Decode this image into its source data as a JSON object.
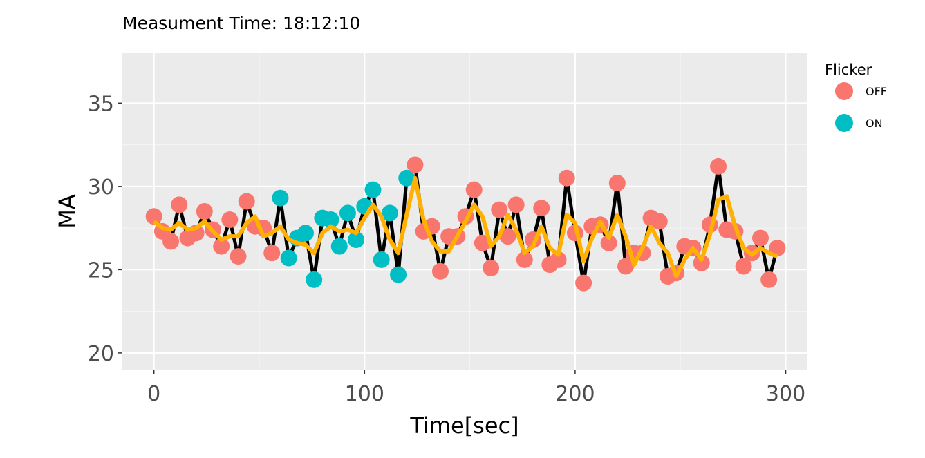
{
  "chart_data": {
    "type": "line",
    "title": "Measument Time: 18:12:10",
    "xlabel": "Time[sec]",
    "ylabel": "MA",
    "xlim": [
      -15,
      310
    ],
    "ylim": [
      19,
      38
    ],
    "x_ticks": [
      0,
      100,
      200,
      300
    ],
    "y_ticks": [
      20,
      25,
      30,
      35
    ],
    "x_tick_labels": [
      "0",
      "100",
      "200",
      "300"
    ],
    "y_tick_labels": [
      "20",
      "25",
      "30",
      "35"
    ],
    "grid": true,
    "legend": {
      "title": "Flicker",
      "position": "right",
      "entries": [
        {
          "label": "OFF",
          "color": "#F8766D"
        },
        {
          "label": "ON",
          "color": "#00BFC4"
        }
      ]
    },
    "colors": {
      "OFF": "#F8766D",
      "ON": "#00BFC4",
      "line": "#000000",
      "smooth": "#FFB000",
      "panel": "#EBEBEB"
    },
    "series": [
      {
        "type": "scatter+line",
        "x": [
          0,
          4,
          8,
          12,
          16,
          20,
          24,
          28,
          32,
          36,
          40,
          44,
          48,
          52,
          56,
          60,
          64,
          68,
          72,
          76,
          80,
          84,
          88,
          92,
          96,
          100,
          104,
          108,
          112,
          116,
          120,
          124,
          128,
          132,
          136,
          140,
          144,
          148,
          152,
          156,
          160,
          164,
          168,
          172,
          176,
          180,
          184,
          188,
          192,
          196,
          200,
          204,
          208,
          212,
          216,
          220,
          224,
          228,
          232,
          236,
          240,
          244,
          248,
          252,
          256,
          260,
          264,
          268,
          272,
          276,
          280,
          284,
          288,
          292,
          296
        ],
        "y": [
          28.2,
          27.3,
          26.7,
          28.9,
          26.9,
          27.2,
          28.5,
          27.4,
          26.4,
          28.0,
          25.8,
          29.1,
          27.6,
          27.5,
          26.0,
          29.3,
          25.7,
          26.9,
          27.2,
          24.4,
          28.1,
          28.0,
          26.4,
          28.4,
          26.8,
          28.8,
          29.8,
          25.6,
          28.4,
          24.7,
          30.5,
          31.3,
          27.3,
          27.6,
          24.9,
          27.0,
          27.0,
          28.2,
          29.8,
          26.6,
          25.1,
          28.6,
          27.0,
          28.9,
          25.6,
          26.8,
          28.7,
          25.3,
          25.6,
          30.5,
          27.2,
          24.2,
          27.6,
          27.7,
          26.6,
          30.2,
          25.2,
          26.0,
          26.0,
          28.1,
          27.9,
          24.6,
          24.8,
          26.4,
          26.3,
          25.4,
          27.7,
          31.2,
          27.4,
          27.3,
          25.2,
          26.0,
          26.9,
          24.4,
          26.3
        ],
        "flicker": [
          "OFF",
          "OFF",
          "OFF",
          "OFF",
          "OFF",
          "OFF",
          "OFF",
          "OFF",
          "OFF",
          "OFF",
          "OFF",
          "OFF",
          "OFF",
          "OFF",
          "OFF",
          "ON",
          "ON",
          "ON",
          "ON",
          "ON",
          "ON",
          "ON",
          "ON",
          "ON",
          "ON",
          "ON",
          "ON",
          "ON",
          "ON",
          "ON",
          "ON",
          "OFF",
          "OFF",
          "OFF",
          "OFF",
          "OFF",
          "OFF",
          "OFF",
          "OFF",
          "OFF",
          "OFF",
          "OFF",
          "OFF",
          "OFF",
          "OFF",
          "OFF",
          "OFF",
          "OFF",
          "OFF",
          "OFF",
          "OFF",
          "OFF",
          "OFF",
          "OFF",
          "OFF",
          "OFF",
          "OFF",
          "OFF",
          "OFF",
          "OFF",
          "OFF",
          "OFF",
          "OFF",
          "OFF",
          "OFF",
          "OFF",
          "OFF",
          "OFF",
          "OFF",
          "OFF",
          "OFF",
          "OFF",
          "OFF",
          "OFF",
          "OFF"
        ]
      },
      {
        "type": "line",
        "x": [
          0,
          4,
          8,
          12,
          16,
          20,
          24,
          28,
          32,
          36,
          40,
          44,
          48,
          52,
          56,
          60,
          64,
          68,
          72,
          76,
          80,
          84,
          88,
          92,
          96,
          100,
          104,
          108,
          112,
          116,
          120,
          124,
          128,
          132,
          136,
          140,
          144,
          148,
          152,
          156,
          160,
          164,
          168,
          172,
          176,
          180,
          184,
          188,
          192,
          196,
          200,
          204,
          208,
          212,
          216,
          220,
          224,
          228,
          232,
          236,
          240,
          244,
          248,
          252,
          256,
          260,
          264,
          268,
          272,
          276,
          280,
          284,
          288,
          292,
          296
        ],
        "y": [
          27.9,
          27.5,
          27.4,
          27.8,
          27.4,
          27.5,
          27.9,
          27.3,
          26.8,
          27.0,
          27.0,
          27.8,
          28.2,
          27.0,
          27.2,
          27.6,
          26.8,
          26.6,
          26.5,
          26.0,
          27.2,
          27.6,
          27.3,
          27.4,
          27.2,
          28.1,
          28.9,
          28.2,
          26.8,
          26.0,
          28.3,
          30.5,
          28.0,
          26.7,
          26.1,
          26.1,
          27.0,
          27.9,
          28.9,
          28.2,
          26.4,
          27.0,
          28.3,
          27.4,
          26.0,
          26.4,
          27.6,
          26.3,
          25.9,
          28.3,
          27.8,
          25.5,
          26.9,
          27.9,
          26.9,
          28.3,
          27.0,
          25.3,
          26.3,
          27.6,
          26.6,
          26.0,
          24.6,
          25.6,
          26.3,
          25.6,
          27.1,
          29.2,
          29.4,
          27.6,
          26.3,
          25.9,
          26.3,
          26.0,
          25.8
        ]
      }
    ]
  }
}
